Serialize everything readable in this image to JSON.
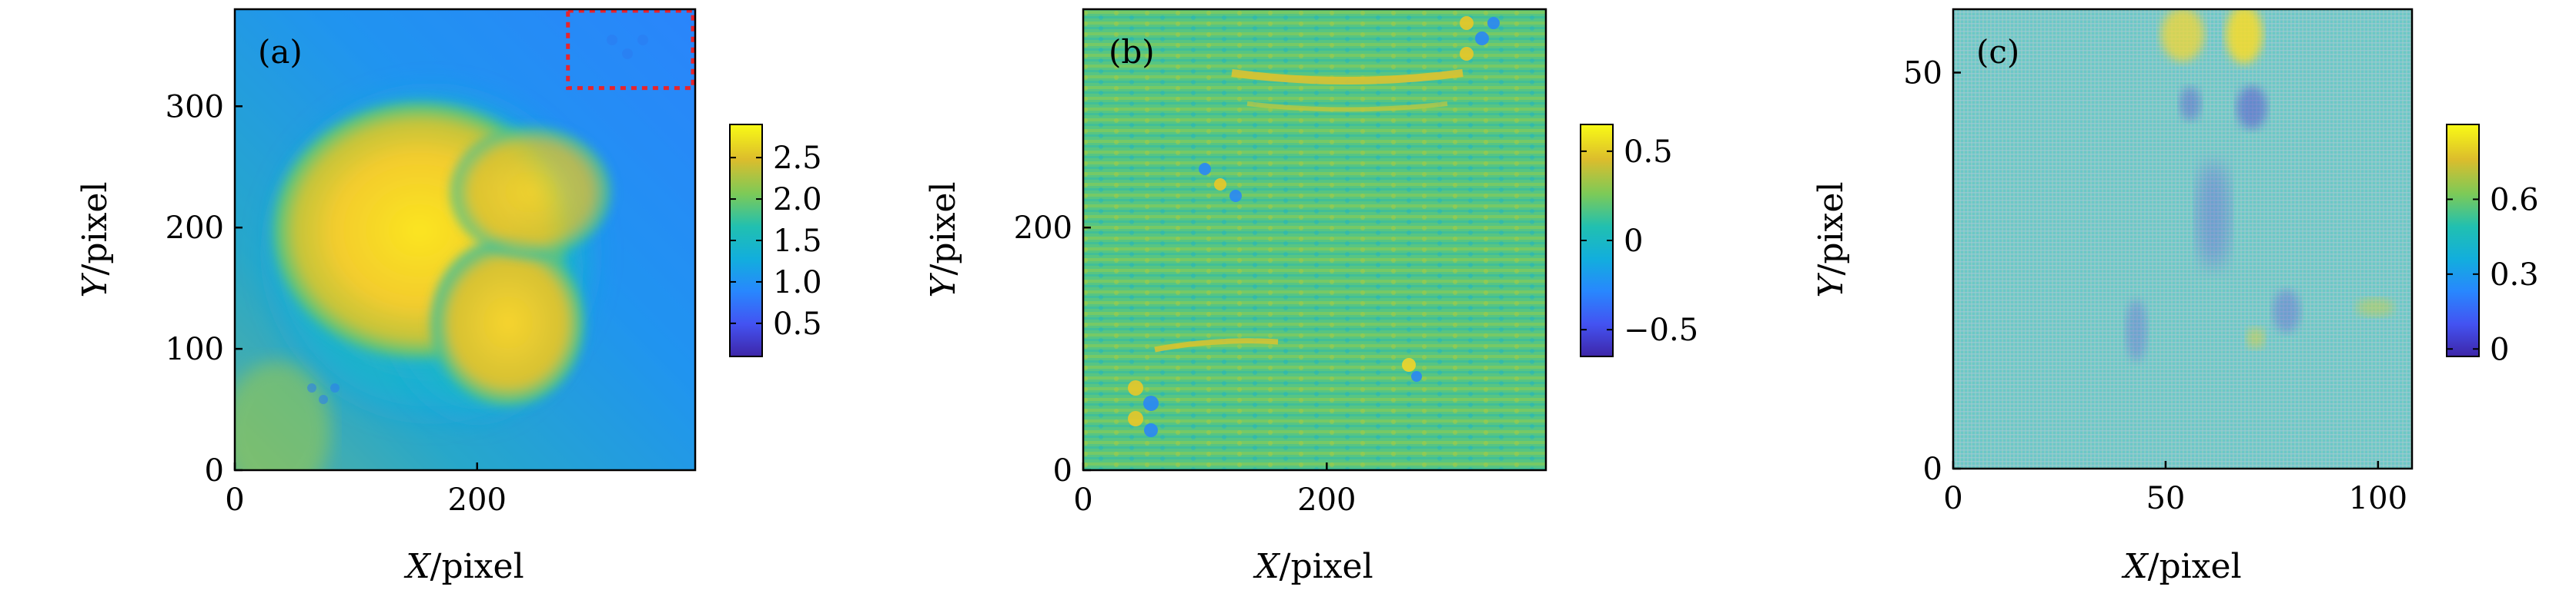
{
  "chart_data": [
    {
      "type": "heatmap",
      "panel_label": "(a)",
      "xlabel_var": "X",
      "ylabel_var": "Y",
      "xlabel_unit": "/pixel",
      "ylabel_unit": "/pixel",
      "xlim": [
        0,
        380
      ],
      "ylim": [
        0,
        380
      ],
      "xticks": [
        0,
        200
      ],
      "xtick_labels": [
        "0",
        "200"
      ],
      "yticks": [
        0,
        100,
        200,
        300
      ],
      "ytick_labels": [
        "0",
        "100",
        "200",
        "300"
      ],
      "colorbar": {
        "range": [
          0.1,
          2.9
        ],
        "ticks": [
          0.5,
          1.0,
          1.5,
          2.0,
          2.5
        ],
        "tick_labels": [
          "0.5",
          "1.0",
          "1.5",
          "2.0",
          "2.5"
        ]
      },
      "annotation": "red dotted rectangle, top-right region (x 275–380, y 315–380)",
      "highlight_box": {
        "x": [
          275,
          380
        ],
        "y": [
          315,
          380
        ],
        "color": "#e8232b"
      }
    },
    {
      "type": "heatmap",
      "panel_label": "(b)",
      "xlabel_var": "X",
      "ylabel_var": "Y",
      "xlabel_unit": "/pixel",
      "ylabel_unit": "/pixel",
      "xlim": [
        0,
        380
      ],
      "ylim": [
        0,
        380
      ],
      "xticks": [
        0,
        200
      ],
      "xtick_labels": [
        "0",
        "200"
      ],
      "yticks": [
        0,
        200
      ],
      "ytick_labels": [
        "0",
        "200"
      ],
      "colorbar": {
        "range": [
          -0.65,
          0.65
        ],
        "ticks": [
          -0.5,
          0,
          0.5
        ],
        "tick_labels": [
          "−0.5",
          "0",
          "0.5"
        ]
      }
    },
    {
      "type": "heatmap",
      "panel_label": "(c)",
      "xlabel_var": "X",
      "ylabel_var": "Y",
      "xlabel_unit": "/pixel",
      "ylabel_unit": "/pixel",
      "xlim": [
        0,
        108
      ],
      "ylim": [
        0,
        58
      ],
      "xticks": [
        0,
        50,
        100
      ],
      "xtick_labels": [
        "0",
        "50",
        "100"
      ],
      "yticks": [
        0,
        50
      ],
      "ytick_labels": [
        "0",
        "50"
      ],
      "colorbar": {
        "range": [
          -0.03,
          0.9
        ],
        "ticks": [
          0,
          0.3,
          0.6
        ],
        "tick_labels": [
          "0",
          "0.3",
          "0.6"
        ]
      }
    }
  ]
}
